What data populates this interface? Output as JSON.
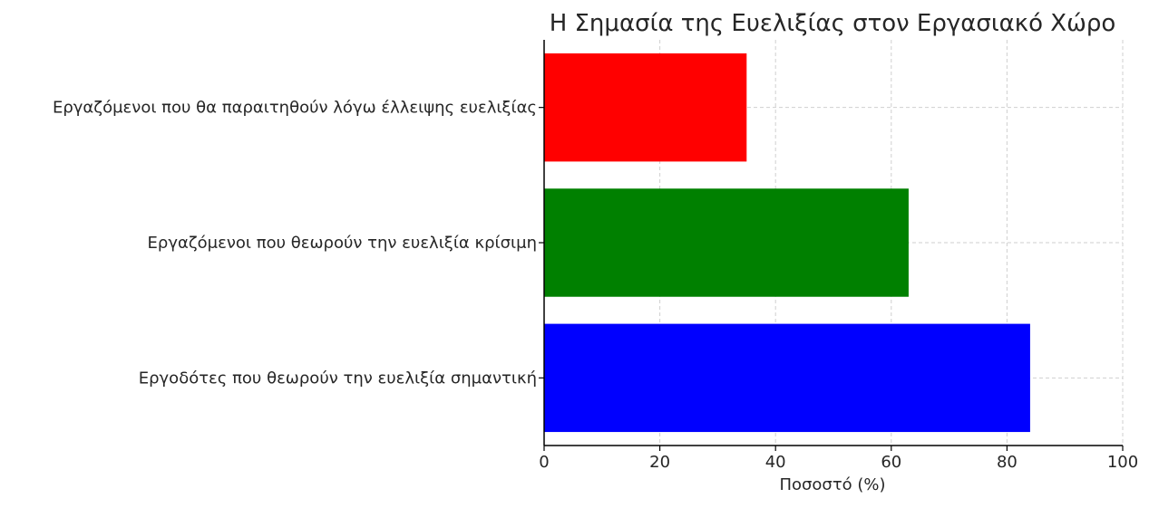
{
  "chart_data": {
    "type": "bar",
    "orientation": "horizontal",
    "title": "Η Σημασία της Ευελιξίας στον Εργασιακό Χώρο",
    "xlabel": "Ποσοστό (%)",
    "ylabel": "",
    "xlim": [
      0,
      100
    ],
    "xticks": [
      0,
      20,
      40,
      60,
      80,
      100
    ],
    "grid": true,
    "categories": [
      "Εργοδότες που θεωρούν την ευελιξία σημαντική",
      "Εργαζόμενοι που θεωρούν την ευελιξία κρίσιμη",
      "Εργαζόμενοι που θα παραιτηθούν λόγω έλλειψης ευελιξίας"
    ],
    "values": [
      84,
      63,
      35
    ],
    "colors": [
      "#0000ff",
      "#008000",
      "#ff0000"
    ]
  }
}
